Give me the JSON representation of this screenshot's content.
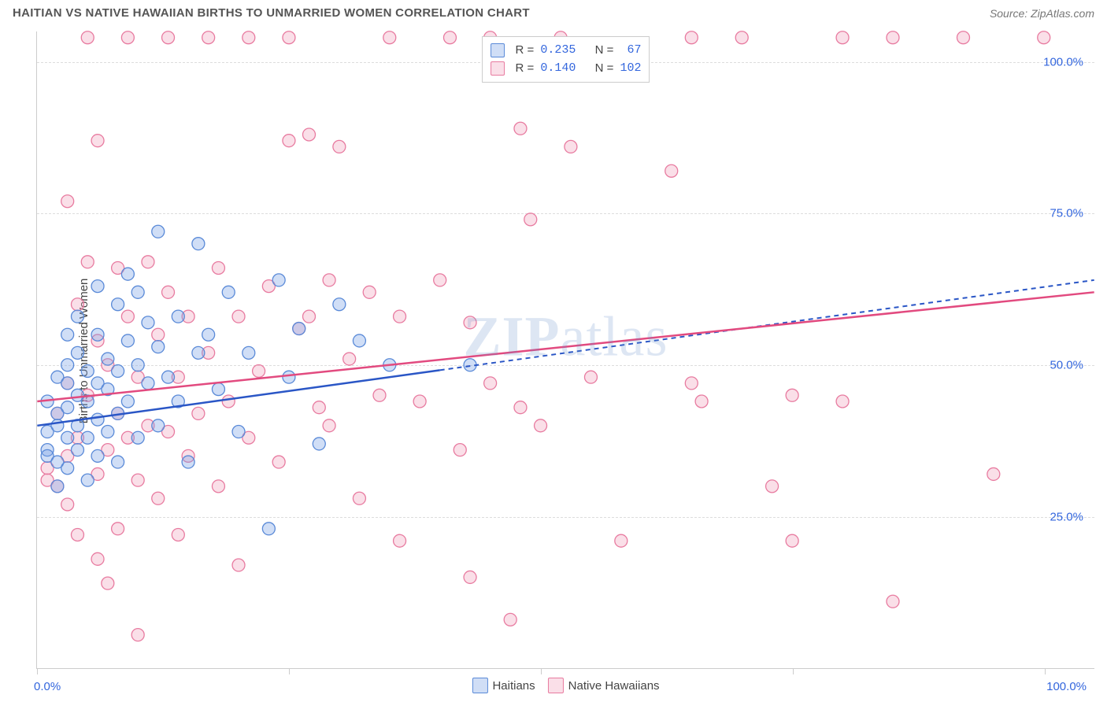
{
  "header": {
    "title": "HAITIAN VS NATIVE HAWAIIAN BIRTHS TO UNMARRIED WOMEN CORRELATION CHART",
    "source": "Source: ZipAtlas.com"
  },
  "chart": {
    "type": "scatter",
    "ylabel": "Births to Unmarried Women",
    "watermark": "ZIPatlas",
    "xlim": [
      0,
      105
    ],
    "ylim": [
      0,
      105
    ],
    "xtick_positions": [
      0,
      25,
      50,
      75,
      100
    ],
    "xtick_labels": [
      "0.0%",
      "",
      "",
      "",
      "100.0%"
    ],
    "ytick_positions": [
      25,
      50,
      75,
      100
    ],
    "ytick_labels": [
      "25.0%",
      "50.0%",
      "75.0%",
      "100.0%"
    ],
    "grid_color": "#dddddd",
    "axis_color": "#cccccc",
    "background_color": "#ffffff",
    "title_fontsize": 15,
    "label_fontsize": 15,
    "tick_fontcolor": "#3366dd",
    "marker_radius": 8,
    "marker_stroke_width": 1.3,
    "series": [
      {
        "name": "Haitians",
        "fill": "rgba(120,160,230,0.35)",
        "stroke": "#5a8ad8",
        "line_color": "#2a56c6",
        "line_dash_after_x": 40,
        "R": "0.235",
        "N": "67",
        "trend": {
          "x1": 0,
          "y1": 40,
          "x2": 105,
          "y2": 64
        },
        "points": [
          [
            1,
            44
          ],
          [
            1,
            39
          ],
          [
            1,
            36
          ],
          [
            1,
            35
          ],
          [
            2,
            48
          ],
          [
            2,
            42
          ],
          [
            2,
            40
          ],
          [
            2,
            34
          ],
          [
            2,
            30
          ],
          [
            3,
            55
          ],
          [
            3,
            50
          ],
          [
            3,
            47
          ],
          [
            3,
            43
          ],
          [
            3,
            38
          ],
          [
            3,
            33
          ],
          [
            4,
            58
          ],
          [
            4,
            52
          ],
          [
            4,
            45
          ],
          [
            4,
            40
          ],
          [
            4,
            36
          ],
          [
            5,
            49
          ],
          [
            5,
            44
          ],
          [
            5,
            38
          ],
          [
            5,
            31
          ],
          [
            6,
            63
          ],
          [
            6,
            55
          ],
          [
            6,
            47
          ],
          [
            6,
            41
          ],
          [
            6,
            35
          ],
          [
            7,
            51
          ],
          [
            7,
            46
          ],
          [
            7,
            39
          ],
          [
            8,
            60
          ],
          [
            8,
            49
          ],
          [
            8,
            42
          ],
          [
            8,
            34
          ],
          [
            9,
            65
          ],
          [
            9,
            54
          ],
          [
            9,
            44
          ],
          [
            10,
            62
          ],
          [
            10,
            50
          ],
          [
            10,
            38
          ],
          [
            11,
            57
          ],
          [
            11,
            47
          ],
          [
            12,
            72
          ],
          [
            12,
            53
          ],
          [
            12,
            40
          ],
          [
            13,
            48
          ],
          [
            14,
            58
          ],
          [
            14,
            44
          ],
          [
            15,
            34
          ],
          [
            16,
            70
          ],
          [
            16,
            52
          ],
          [
            17,
            55
          ],
          [
            18,
            46
          ],
          [
            19,
            62
          ],
          [
            20,
            39
          ],
          [
            21,
            52
          ],
          [
            23,
            23
          ],
          [
            24,
            64
          ],
          [
            25,
            48
          ],
          [
            26,
            56
          ],
          [
            28,
            37
          ],
          [
            30,
            60
          ],
          [
            32,
            54
          ],
          [
            35,
            50
          ],
          [
            43,
            50
          ]
        ]
      },
      {
        "name": "Native Hawaiians",
        "fill": "rgba(240,150,180,0.30)",
        "stroke": "#e87ba0",
        "line_color": "#e24a7f",
        "line_dash_after_x": 105,
        "R": "0.140",
        "N": "102",
        "trend": {
          "x1": 0,
          "y1": 44,
          "x2": 105,
          "y2": 62
        },
        "points": [
          [
            1,
            33
          ],
          [
            1,
            31
          ],
          [
            2,
            42
          ],
          [
            2,
            30
          ],
          [
            3,
            77
          ],
          [
            3,
            47
          ],
          [
            3,
            35
          ],
          [
            3,
            27
          ],
          [
            4,
            60
          ],
          [
            4,
            38
          ],
          [
            4,
            22
          ],
          [
            5,
            104
          ],
          [
            5,
            67
          ],
          [
            5,
            45
          ],
          [
            6,
            87
          ],
          [
            6,
            54
          ],
          [
            6,
            32
          ],
          [
            6,
            18
          ],
          [
            7,
            50
          ],
          [
            7,
            36
          ],
          [
            7,
            14
          ],
          [
            8,
            66
          ],
          [
            8,
            42
          ],
          [
            8,
            23
          ],
          [
            9,
            104
          ],
          [
            9,
            58
          ],
          [
            9,
            38
          ],
          [
            10,
            48
          ],
          [
            10,
            31
          ],
          [
            10,
            5.5
          ],
          [
            11,
            67
          ],
          [
            11,
            40
          ],
          [
            12,
            55
          ],
          [
            12,
            28
          ],
          [
            13,
            104
          ],
          [
            13,
            62
          ],
          [
            13,
            39
          ],
          [
            14,
            48
          ],
          [
            14,
            22
          ],
          [
            15,
            58
          ],
          [
            15,
            35
          ],
          [
            16,
            42
          ],
          [
            17,
            104
          ],
          [
            17,
            52
          ],
          [
            18,
            66
          ],
          [
            18,
            30
          ],
          [
            19,
            44
          ],
          [
            20,
            58
          ],
          [
            20,
            17
          ],
          [
            21,
            104
          ],
          [
            21,
            38
          ],
          [
            22,
            49
          ],
          [
            23,
            63
          ],
          [
            24,
            34
          ],
          [
            25,
            104
          ],
          [
            25,
            87
          ],
          [
            26,
            56
          ],
          [
            27,
            88
          ],
          [
            27,
            58
          ],
          [
            28,
            43
          ],
          [
            29,
            40
          ],
          [
            29,
            64
          ],
          [
            30,
            86
          ],
          [
            31,
            51
          ],
          [
            32,
            28
          ],
          [
            33,
            62
          ],
          [
            34,
            45
          ],
          [
            35,
            104
          ],
          [
            36,
            58
          ],
          [
            36,
            21
          ],
          [
            38,
            44
          ],
          [
            40,
            64
          ],
          [
            41,
            104
          ],
          [
            42,
            36
          ],
          [
            43,
            57
          ],
          [
            43,
            15
          ],
          [
            45,
            104
          ],
          [
            45,
            47
          ],
          [
            47,
            8
          ],
          [
            48,
            89
          ],
          [
            48,
            43
          ],
          [
            49,
            74
          ],
          [
            50,
            40
          ],
          [
            52,
            104
          ],
          [
            53,
            86
          ],
          [
            55,
            48
          ],
          [
            58,
            21
          ],
          [
            63,
            82
          ],
          [
            65,
            104
          ],
          [
            65,
            47
          ],
          [
            66,
            44
          ],
          [
            70,
            104
          ],
          [
            73,
            30
          ],
          [
            75,
            45
          ],
          [
            75,
            21
          ],
          [
            80,
            104
          ],
          [
            80,
            44
          ],
          [
            85,
            104
          ],
          [
            85,
            11
          ],
          [
            92,
            104
          ],
          [
            95,
            32
          ],
          [
            100,
            104
          ]
        ]
      }
    ]
  },
  "stats_box": {
    "rows": [
      {
        "series_index": 0,
        "R_label": "R =",
        "N_label": "N ="
      },
      {
        "series_index": 1,
        "R_label": "R =",
        "N_label": "N ="
      }
    ]
  },
  "bottom_legend": {
    "items": [
      {
        "series_index": 0
      },
      {
        "series_index": 1
      }
    ]
  }
}
